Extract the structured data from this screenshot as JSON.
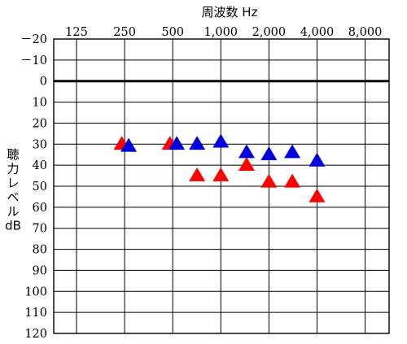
{
  "chart_data": {
    "type": "scatter",
    "title": "周波数 Hz",
    "ylabel": "聴力レベル dB",
    "ylabel_lines": [
      "聴",
      "力",
      "レ",
      "ベ",
      "ル",
      "dB"
    ],
    "x_ticks": [
      "125",
      "250",
      "500",
      "1,000",
      "2,000",
      "4,000",
      "8,000"
    ],
    "y_ticks": [
      "－20",
      "－10",
      "0",
      "10",
      "20",
      "30",
      "40",
      "50",
      "60",
      "70",
      "80",
      "90",
      "100",
      "110",
      "120"
    ],
    "y_values": [
      -20,
      -10,
      0,
      10,
      20,
      30,
      40,
      50,
      60,
      70,
      80,
      90,
      100,
      110,
      120
    ],
    "ylim": [
      -20,
      120
    ],
    "y_inverted": true,
    "x_scale": "log2",
    "xlim": [
      90,
      11300
    ],
    "grid": true,
    "reference_line_y": 0,
    "marker": "triangle",
    "series": [
      {
        "color": "#ff0000",
        "points": [
          {
            "x": 240,
            "y": 30
          },
          {
            "x": 480,
            "y": 30
          },
          {
            "x": 710,
            "y": 45
          },
          {
            "x": 1000,
            "y": 45
          },
          {
            "x": 1450,
            "y": 40
          },
          {
            "x": 2000,
            "y": 48
          },
          {
            "x": 2800,
            "y": 48
          },
          {
            "x": 4000,
            "y": 55
          }
        ]
      },
      {
        "color": "#0000dd",
        "points": [
          {
            "x": 265,
            "y": 31
          },
          {
            "x": 530,
            "y": 30
          },
          {
            "x": 710,
            "y": 30
          },
          {
            "x": 1000,
            "y": 29
          },
          {
            "x": 1450,
            "y": 34
          },
          {
            "x": 2000,
            "y": 35
          },
          {
            "x": 2800,
            "y": 34
          },
          {
            "x": 4000,
            "y": 38
          }
        ]
      }
    ]
  }
}
